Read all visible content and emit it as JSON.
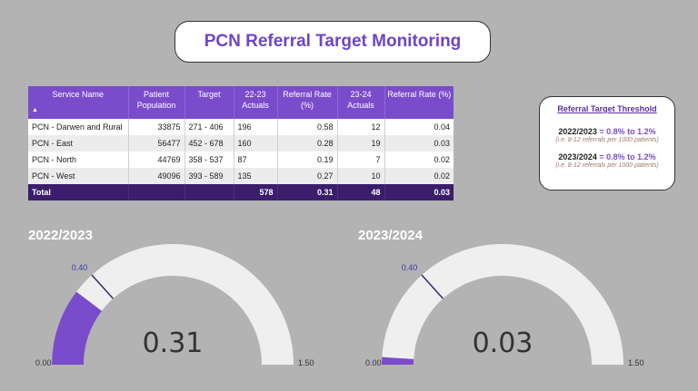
{
  "title": "PCN Referral Target Monitoring",
  "table": {
    "headers": [
      "Service Name",
      "Patient Population",
      "Target",
      "22-23 Actuals",
      "Referral Rate (%)",
      "23-24 Actuals",
      "Referral Rate (%)"
    ],
    "sort_icon": "sort-up-icon",
    "rows": [
      [
        "PCN - Darwen and Rural",
        "33875",
        "271 - 406",
        "196",
        "0.58",
        "12",
        "0.04"
      ],
      [
        "PCN - East",
        "56477",
        "452 - 678",
        "160",
        "0.28",
        "19",
        "0.03"
      ],
      [
        "PCN - North",
        "44769",
        "358 - 537",
        "87",
        "0.19",
        "7",
        "0.02"
      ],
      [
        "PCN - West",
        "49096",
        "393 - 589",
        "135",
        "0.27",
        "10",
        "0.02"
      ]
    ],
    "total": [
      "Total",
      "",
      "",
      "578",
      "0.31",
      "48",
      "0.03"
    ]
  },
  "threshold": {
    "heading": "Referral Target Threshold",
    "y1_label": "2022/2023",
    "y1_eq": " = ",
    "y1_value": "0.8% to 1.2%",
    "y1_note": "(i.e. 8-12 referrals per 1000 patients)",
    "y2_label": "2023/2024",
    "y2_eq": " = ",
    "y2_value": "0.8% to 1.2%",
    "y2_note": "(i.e. 8-12 referrals per 1000 patients)"
  },
  "gauges": [
    {
      "title": "2022/2023",
      "value": 0.31,
      "value_text": "0.31",
      "min": 0,
      "max": 1.5,
      "target": 0.4,
      "min_text": "0.00",
      "max_text": "1.50",
      "target_text": "0.40"
    },
    {
      "title": "2023/2024",
      "value": 0.03,
      "value_text": "0.03",
      "min": 0,
      "max": 1.5,
      "target": 0.4,
      "min_text": "0.00",
      "max_text": "1.50",
      "target_text": "0.40"
    }
  ],
  "colors": {
    "accent": "#7a4ccb",
    "total_row": "#3b1d6b",
    "gauge_track": "#f0efef",
    "target_line": "#2c2c7a"
  }
}
